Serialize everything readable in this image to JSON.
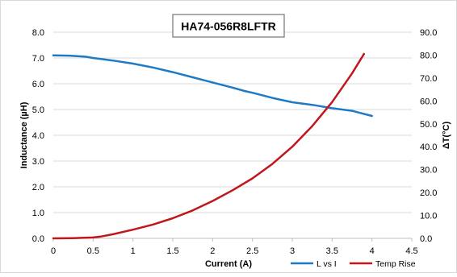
{
  "chart_data": {
    "type": "line",
    "title": "HA74-056R8LFTR",
    "xlabel": "Current (A)",
    "ylabel": "Inductance (µH)",
    "y2label": "ΔT(°C)",
    "xlim": [
      0,
      4.5
    ],
    "ylim": [
      0,
      8
    ],
    "y2lim": [
      0,
      90
    ],
    "x_ticks": [
      "0",
      "0.5",
      "1",
      "1.5",
      "2",
      "2.5",
      "3",
      "3.5",
      "4",
      "4.5"
    ],
    "y_ticks": [
      "0.0",
      "1.0",
      "2.0",
      "3.0",
      "4.0",
      "5.0",
      "6.0",
      "7.0",
      "8.0"
    ],
    "y2_ticks": [
      "0.0",
      "10.0",
      "20.0",
      "30.0",
      "40.0",
      "50.0",
      "60.0",
      "70.0",
      "80.0",
      "90.0"
    ],
    "grid": "horizontal",
    "legend_position": "bottom-right",
    "series": [
      {
        "name": "L vs I",
        "axis": "left",
        "color": "#1f7ac4",
        "x": [
          0,
          0.2,
          0.4,
          0.5,
          0.75,
          1.0,
          1.25,
          1.5,
          1.75,
          2.0,
          2.25,
          2.4,
          2.5,
          2.75,
          3.0,
          3.25,
          3.5,
          3.75,
          3.85,
          4.0
        ],
        "values": [
          7.1,
          7.09,
          7.05,
          7.0,
          6.9,
          6.78,
          6.63,
          6.45,
          6.25,
          6.05,
          5.85,
          5.72,
          5.65,
          5.45,
          5.28,
          5.18,
          5.05,
          4.95,
          4.87,
          4.75
        ]
      },
      {
        "name": "Temp Rise",
        "axis": "right",
        "color": "#c0171c",
        "x": [
          0,
          0.25,
          0.5,
          0.6,
          0.75,
          1.0,
          1.25,
          1.5,
          1.75,
          2.0,
          2.25,
          2.5,
          2.75,
          3.0,
          3.25,
          3.5,
          3.75,
          3.9
        ],
        "values": [
          0,
          0.1,
          0.4,
          0.8,
          1.8,
          3.8,
          6.0,
          8.8,
          12.2,
          16.3,
          21.0,
          26.2,
          32.5,
          40.0,
          49.0,
          59.5,
          72.0,
          80.5
        ]
      }
    ]
  }
}
